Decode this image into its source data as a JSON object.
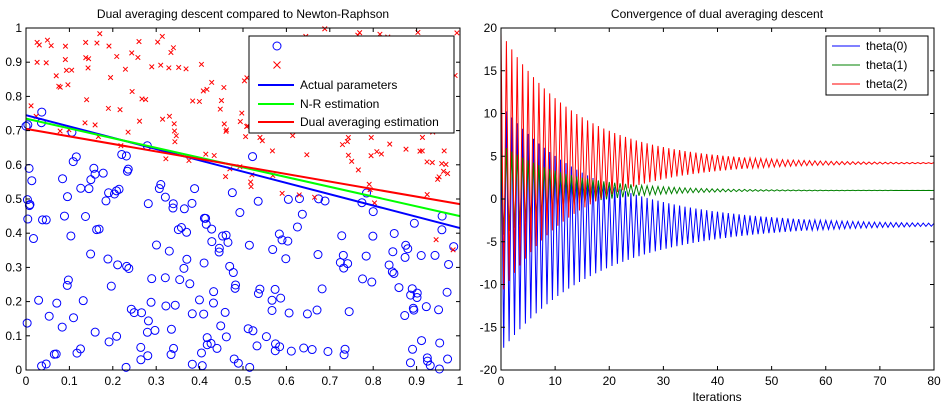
{
  "chart_data": [
    {
      "type": "scatter",
      "title": "Dual averaging descent compared to Newton-Raphson",
      "xlim": [
        0,
        1
      ],
      "ylim": [
        0,
        1
      ],
      "xticks": [
        "0",
        "0.1",
        "0.2",
        "0.3",
        "0.4",
        "0.5",
        "0.6",
        "0.7",
        "0.8",
        "0.9",
        "1"
      ],
      "yticks": [
        "0",
        "0.1",
        "0.2",
        "0.3",
        "0.4",
        "0.5",
        "0.6",
        "0.7",
        "0.8",
        "0.9",
        "1"
      ],
      "grid": false,
      "legend_position": "top-right",
      "legend": [
        {
          "label": "",
          "marker": "circle",
          "color": "#0000ff"
        },
        {
          "label": "",
          "marker": "x",
          "color": "#ff0000"
        },
        {
          "label": "Actual parameters",
          "color": "#0000ff"
        },
        {
          "label": "N-R estimation",
          "color": "#00ff00"
        },
        {
          "label": "Dual averaging estimation",
          "color": "#ff0000"
        }
      ],
      "class0": {
        "marker": "circle",
        "color": "#0000ff",
        "count": 220
      },
      "class1": {
        "marker": "x",
        "color": "#ff0000",
        "count": 200
      },
      "lines": [
        {
          "name": "Actual parameters",
          "color": "#0000ff",
          "x": [
            0,
            1
          ],
          "y": [
            0.745,
            0.415
          ]
        },
        {
          "name": "N-R estimation",
          "color": "#00ff00",
          "x": [
            0,
            1
          ],
          "y": [
            0.735,
            0.45
          ]
        },
        {
          "name": "Dual averaging estimation",
          "color": "#ff0000",
          "x": [
            0,
            1
          ],
          "y": [
            0.705,
            0.485
          ]
        }
      ]
    },
    {
      "type": "line",
      "title": "Convergence of dual averaging descent",
      "xlabel": "Iterations",
      "xlim": [
        0,
        80
      ],
      "ylim": [
        -20,
        20
      ],
      "xticks": [
        "0",
        "10",
        "20",
        "30",
        "40",
        "50",
        "60",
        "70",
        "80"
      ],
      "yticks": [
        "-20",
        "-15",
        "-10",
        "-5",
        "0",
        "5",
        "10",
        "15",
        "20"
      ],
      "grid": false,
      "legend_position": "top-right",
      "series": [
        {
          "name": "theta(0)",
          "color": "#0000ff",
          "final": -3.0,
          "osc_start": 16,
          "decay": 0.055
        },
        {
          "name": "theta(1)",
          "color": "#008000",
          "final": 1.0,
          "osc_start": 6,
          "decay": 0.085
        },
        {
          "name": "theta(2)",
          "color": "#ff0000",
          "final": 4.2,
          "osc_start": 17,
          "decay": 0.07
        }
      ]
    }
  ]
}
